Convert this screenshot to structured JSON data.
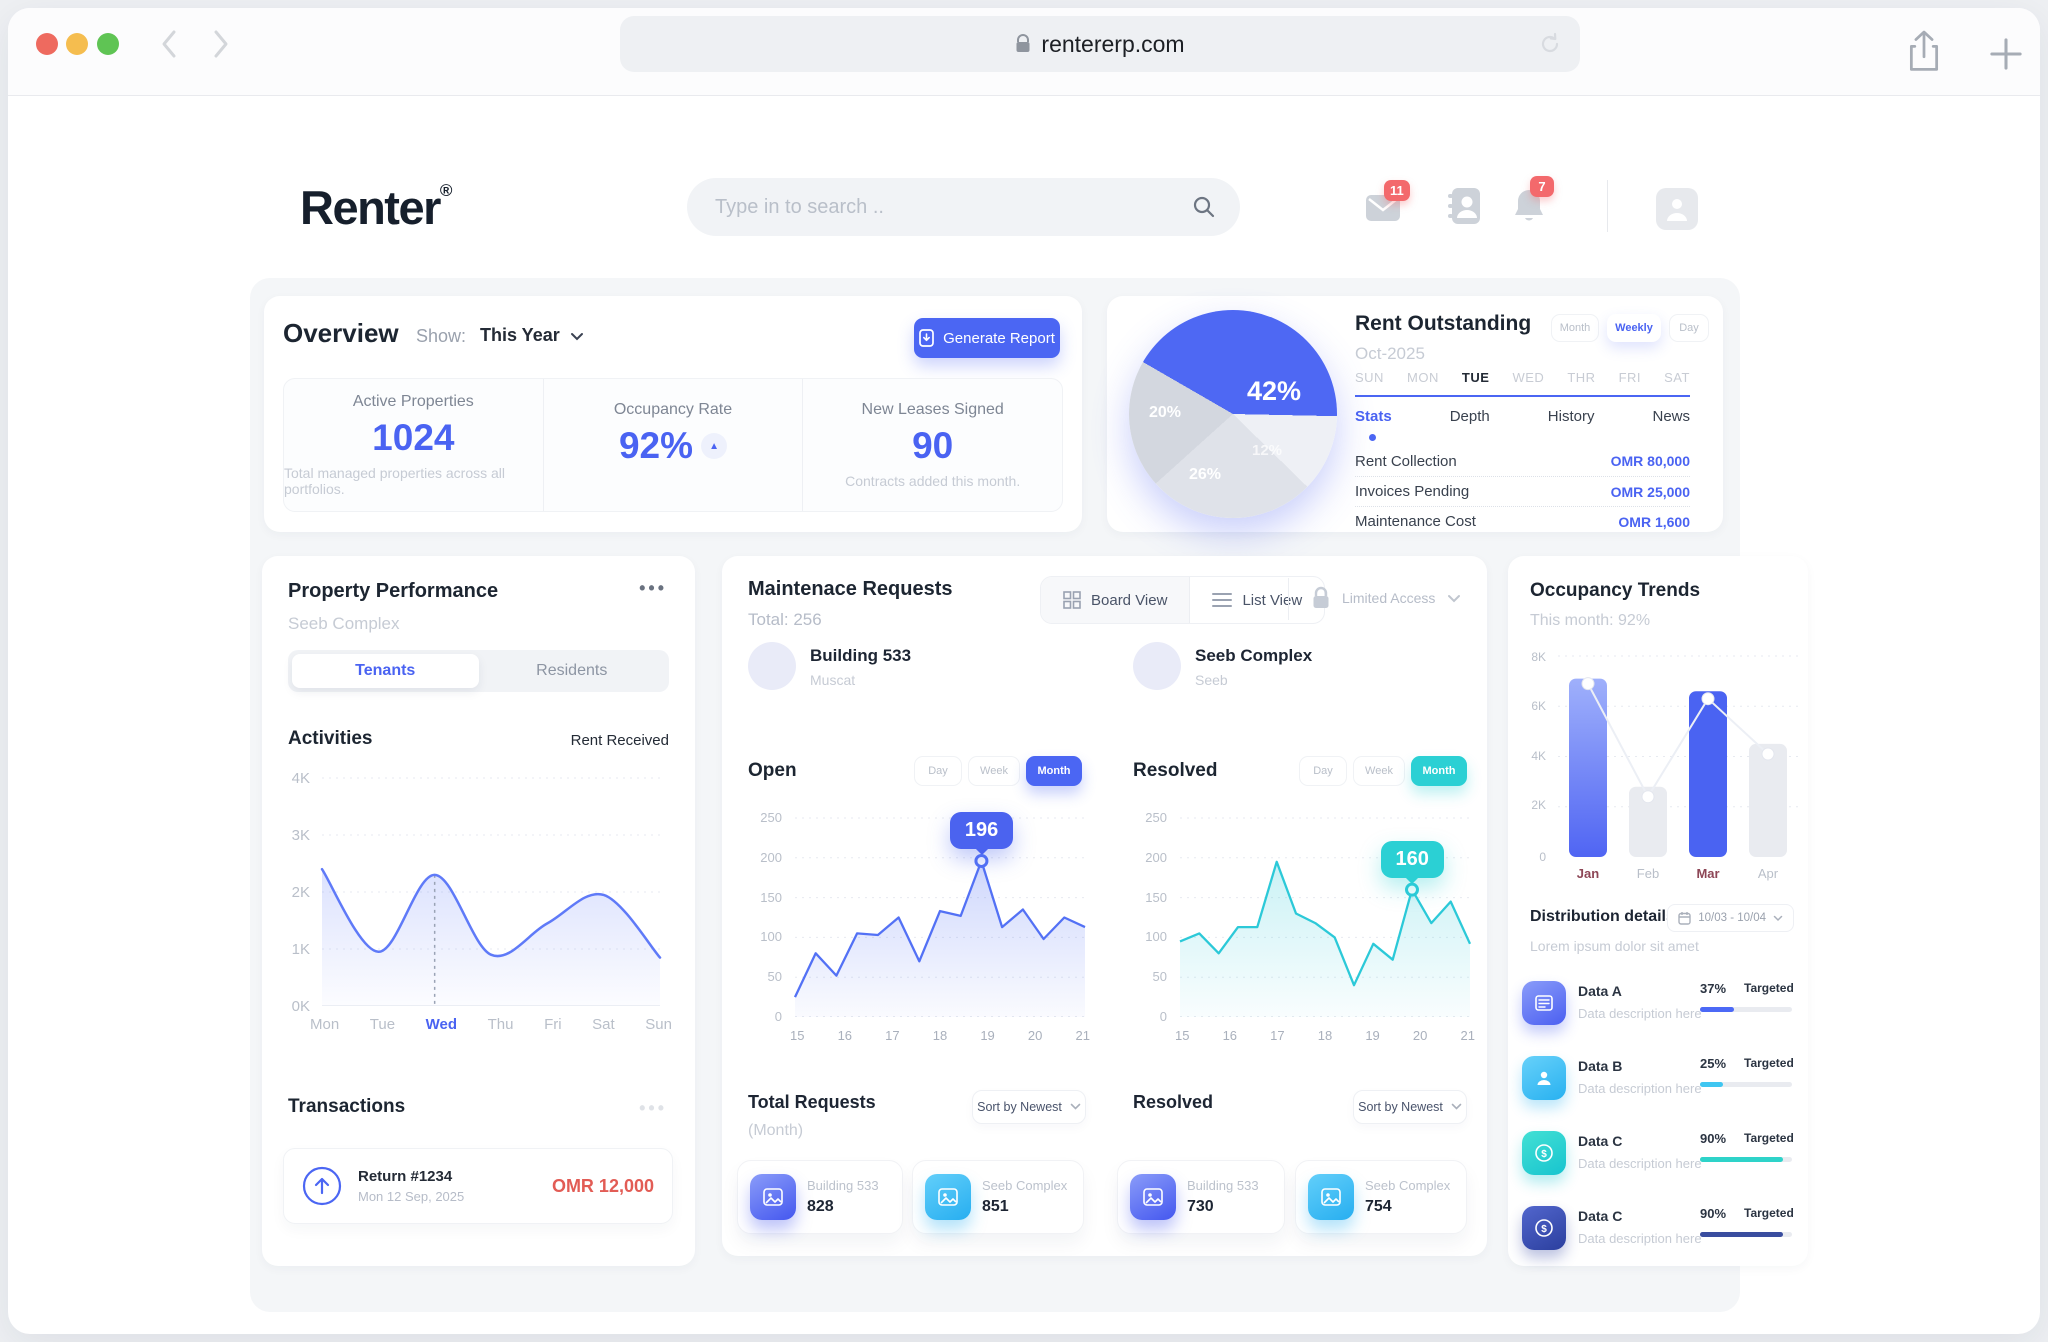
{
  "browser": {
    "url": "rentererp.com"
  },
  "header": {
    "logo": "Renter",
    "reg": "®",
    "search_placeholder": "Type in to search ..",
    "mail_badge": "11",
    "bell_badge": "7"
  },
  "overview": {
    "title": "Overview",
    "show_label": "Show:",
    "show_value": "This Year",
    "generate_report": "Generate Report",
    "stats": [
      {
        "label": "Active Properties",
        "value": "1024",
        "caption": "Total managed properties across all portfolios."
      },
      {
        "label": "Occupancy Rate",
        "value": "92%"
      },
      {
        "label": "New Leases Signed",
        "value": "90",
        "caption": "Contracts added this month."
      }
    ]
  },
  "rent": {
    "title": "Rent Outstanding",
    "period": "Oct-2025",
    "ranges": [
      "Month",
      "Weekly",
      "Day"
    ],
    "active_range": "Weekly",
    "weekdays": [
      "SUN",
      "MON",
      "TUE",
      "WED",
      "THR",
      "FRI",
      "SAT"
    ],
    "active_weekday": "TUE",
    "tabs": [
      "Stats",
      "Depth",
      "History",
      "News"
    ],
    "active_tab": "Stats",
    "rows": [
      {
        "label": "Rent Collection",
        "value": "OMR 80,000"
      },
      {
        "label": "Invoices Pending",
        "value": "OMR 25,000"
      },
      {
        "label": "Maintenance Cost",
        "value": "OMR 1,600"
      }
    ]
  },
  "property": {
    "title": "Property Performance",
    "subtitle": "Seeb Complex",
    "menu": "•••",
    "tabs": [
      "Tenants",
      "Residents"
    ],
    "active_tab": "Tenants",
    "activities_title": "Activities",
    "legend": "Rent Received",
    "transactions_title": "Transactions",
    "transactions_menu": "•••",
    "txn": {
      "name": "Return #1234",
      "date": "Mon 12 Sep, 2025",
      "amount": "OMR 12,000"
    }
  },
  "maintenance": {
    "title": "Maintenace Requests",
    "total": "Total: 256",
    "board_view": "Board View",
    "list_view": "List View",
    "access": "Limited Access",
    "ranges": [
      "Day",
      "Week",
      "Month"
    ],
    "active_range": "Month",
    "columns": [
      {
        "name": "Building 533",
        "city": "Muscat",
        "chart_title": "Open"
      },
      {
        "name": "Seeb Complex",
        "city": "Seeb",
        "chart_title": "Resolved"
      }
    ],
    "bottom": {
      "left_title": "Total Requests",
      "left_sub": "(Month)",
      "right_title": "Resolved",
      "sort": "Sort by Newest",
      "cards": [
        {
          "name": "Building 533",
          "value": "828"
        },
        {
          "name": "Seeb Complex",
          "value": "851"
        },
        {
          "name": "Building 533",
          "value": "730"
        },
        {
          "name": "Seeb Complex",
          "value": "754"
        }
      ]
    }
  },
  "occupancy": {
    "title": "Occupancy Trends",
    "subtitle": "This month: 92%",
    "dist_title": "Distribution details",
    "dist_sub": "Lorem ipsum dolor sit amet",
    "date_range": "10/03 - 10/04",
    "items": [
      {
        "name": "Data A",
        "desc": "Data description here",
        "pct": "37%",
        "target": "Targeted",
        "color": "#4c69f6"
      },
      {
        "name": "Data B",
        "desc": "Data description here",
        "pct": "25%",
        "target": "Targeted",
        "color": "#3fc6f1"
      },
      {
        "name": "Data C",
        "desc": "Data description here",
        "pct": "90%",
        "target": "Targeted",
        "color": "#2ed3c9"
      },
      {
        "name": "Data C",
        "desc": "Data description here",
        "pct": "90%",
        "target": "Targeted",
        "color": "#3a4d9f"
      }
    ]
  },
  "chart_data": [
    {
      "id": "activities",
      "type": "line",
      "title": "Activities",
      "series_name": "Rent Received",
      "x": [
        "Mon",
        "Tue",
        "Wed",
        "Thu",
        "Fri",
        "Sat",
        "Sun"
      ],
      "values": [
        2400,
        950,
        2300,
        900,
        1450,
        1950,
        850
      ],
      "yticks": [
        "4K",
        "3K",
        "2K",
        "1K",
        "0K"
      ],
      "ylim": [
        0,
        4000
      ],
      "highlight_index": 2,
      "smooth": true,
      "color": "#5f7af8",
      "grid": true,
      "legend_position": "top-right"
    },
    {
      "id": "open",
      "type": "line",
      "title": "Open",
      "x_range": [
        14.9,
        21.2
      ],
      "xticks": [
        15,
        16,
        17,
        18,
        19,
        20,
        21
      ],
      "values": [
        25,
        80,
        52,
        105,
        103,
        125,
        70,
        133,
        127,
        196,
        113,
        135,
        98,
        125,
        113
      ],
      "yticks": [
        250,
        200,
        150,
        100,
        50,
        0
      ],
      "ylim": [
        0,
        250
      ],
      "marker_index": 9,
      "marker_label": "196",
      "color": "#5371f5",
      "grid": true
    },
    {
      "id": "resolved",
      "type": "line",
      "title": "Resolved",
      "x_range": [
        14.9,
        21.2
      ],
      "xticks": [
        15,
        16,
        17,
        18,
        19,
        20,
        21
      ],
      "values": [
        95,
        105,
        80,
        113,
        113,
        195,
        130,
        118,
        100,
        40,
        92,
        72,
        160,
        118,
        145,
        92
      ],
      "yticks": [
        250,
        200,
        150,
        100,
        50,
        0
      ],
      "ylim": [
        0,
        250
      ],
      "marker_index": 12,
      "marker_label": "160",
      "color": "#2cc9d8",
      "grid": true
    },
    {
      "id": "occupancy",
      "type": "bar",
      "title": "Occupancy Trends",
      "categories": [
        "Jan",
        "Feb",
        "Mar",
        "Apr"
      ],
      "bar_values": [
        7100,
        2800,
        6600,
        4500
      ],
      "line_values": [
        6900,
        2400,
        6300,
        4100
      ],
      "yticks": [
        "8K",
        "6K",
        "4K",
        "2K",
        "0"
      ],
      "ylim": [
        0,
        8000
      ],
      "highlighted_categories": [
        "Jan",
        "Mar"
      ],
      "bar_colors": [
        "#6d83f6",
        "#e9ebf0",
        "#4a63f2",
        "#e9ebf0"
      ]
    },
    {
      "id": "rent-pie",
      "type": "pie",
      "title": "Rent Outstanding",
      "values": [
        42,
        12,
        26,
        20
      ],
      "labels": [
        "42%",
        "12%",
        "26%",
        "20%"
      ],
      "colors": [
        "#4e68f3",
        "#eef0f5",
        "#dfe2e9",
        "#d3d7df"
      ],
      "start_angle": 300
    }
  ]
}
